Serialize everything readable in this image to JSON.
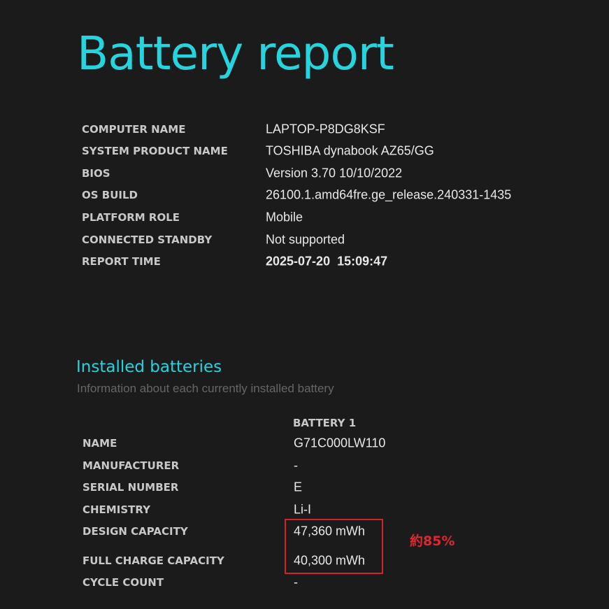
{
  "title": "Battery report",
  "system_info": [
    {
      "label": "COMPUTER NAME",
      "value": "LAPTOP-P8DG8KSF"
    },
    {
      "label": "SYSTEM PRODUCT NAME",
      "value": "TOSHIBA dynabook AZ65/GG"
    },
    {
      "label": "BIOS",
      "value": "Version 3.70 10/10/2022"
    },
    {
      "label": "OS BUILD",
      "value": "26100.1.amd64fre.ge_release.240331-1435"
    },
    {
      "label": "PLATFORM ROLE",
      "value": "Mobile"
    },
    {
      "label": "CONNECTED STANDBY",
      "value": "Not supported"
    },
    {
      "label": "REPORT TIME",
      "value": "2025-07-20  15:09:47"
    }
  ],
  "installed_batteries": {
    "title": "Installed batteries",
    "subtitle": "Information about each currently installed battery",
    "column_header": "BATTERY 1",
    "rows": [
      {
        "label": "NAME",
        "value": "G71C000LW110"
      },
      {
        "label": "MANUFACTURER",
        "value": "-"
      },
      {
        "label": "SERIAL NUMBER",
        "value": "E"
      },
      {
        "label": "CHEMISTRY",
        "value": "Li-I"
      },
      {
        "label": "DESIGN CAPACITY",
        "value": "47,360 mWh"
      },
      {
        "label": "FULL CHARGE CAPACITY",
        "value": "40,300 mWh"
      },
      {
        "label": "CYCLE COUNT",
        "value": "-"
      }
    ]
  },
  "annotation": {
    "text": "約85%",
    "color": "#e0262e"
  },
  "colors": {
    "accent": "#27d3dc",
    "background": "#1b1b1b"
  }
}
